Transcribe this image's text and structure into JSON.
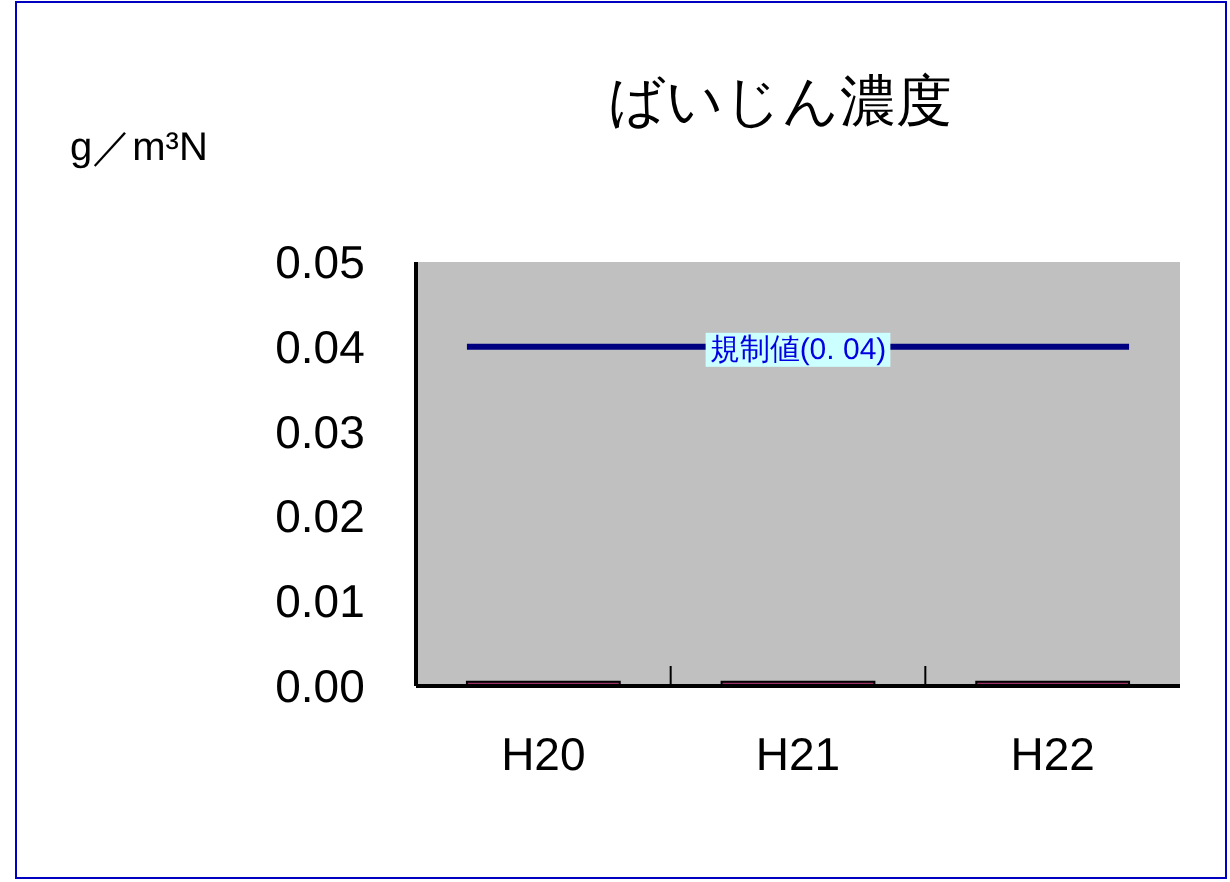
{
  "chart_data": {
    "type": "bar",
    "title": "ばいじん濃度",
    "ylabel": "g／m³N",
    "categories": [
      "H20",
      "H21",
      "H22"
    ],
    "values": [
      0.0005,
      0.0005,
      0.0005
    ],
    "color": "#993366",
    "ylim": [
      0,
      0.05
    ],
    "yticks": [
      {
        "value": 0,
        "label": "0.00"
      },
      {
        "value": 0.01,
        "label": "0.01"
      },
      {
        "value": 0.02,
        "label": "0.02"
      },
      {
        "value": 0.03,
        "label": "0.03"
      },
      {
        "value": 0.04,
        "label": "0.04"
      },
      {
        "value": 0.05,
        "label": "0.05"
      }
    ],
    "ref_lines": [
      {
        "axis": "y",
        "value": 0.04,
        "label": "規制値(0. 04)",
        "color": "#000080"
      }
    ],
    "grid": false
  }
}
